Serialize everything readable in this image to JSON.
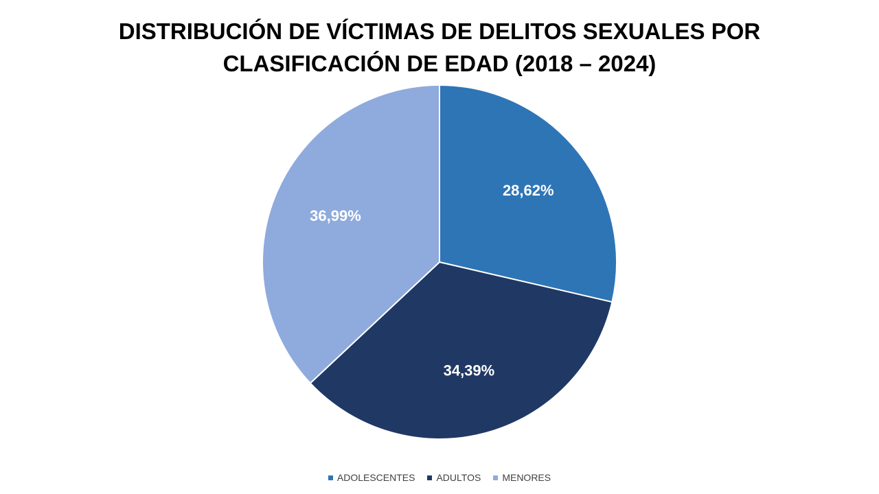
{
  "chart_data": {
    "type": "pie",
    "title_lines": [
      "DISTRIBUCIÓN DE VÍCTIMAS DE DELITOS SEXUALES POR",
      "CLASIFICACIÓN DE EDAD (2018 – 2024)"
    ],
    "slices": [
      {
        "label": "ADOLESCENTES",
        "value": 28.62,
        "display": "28,62%",
        "color": "#2E75B6"
      },
      {
        "label": "ADULTOS",
        "value": 34.39,
        "display": "34,39%",
        "color": "#203864"
      },
      {
        "label": "MENORES",
        "value": 36.99,
        "display": "36,99%",
        "color": "#8FAADC"
      }
    ],
    "start_angle": "12 o'clock",
    "direction": "clockwise",
    "legend_position": "bottom"
  }
}
